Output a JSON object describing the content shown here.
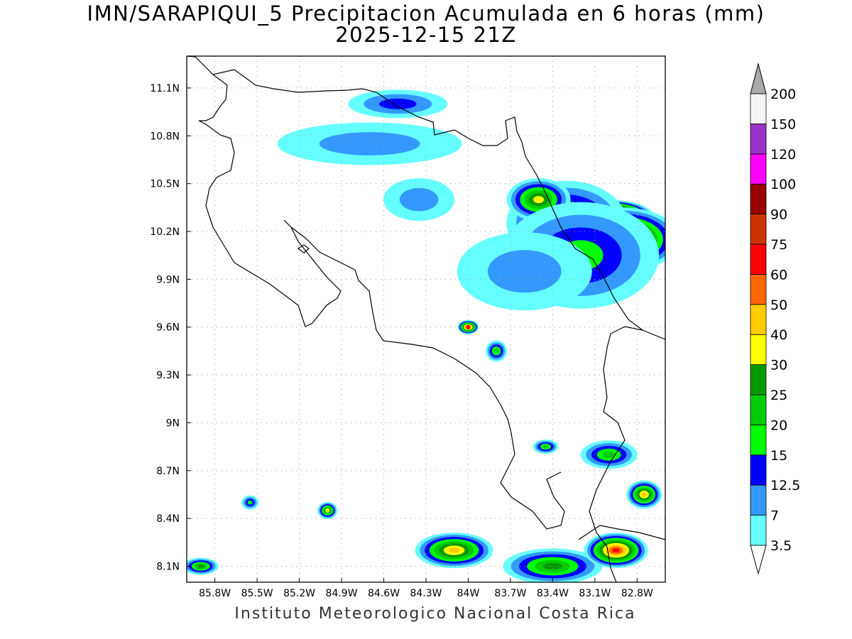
{
  "title": {
    "line1": "IMN/SARAPIQUI_5 Precipitacion Acumulada en 6 horas (mm)",
    "line2": "2025-12-15 21Z"
  },
  "footer": "Instituto Meteorologico Nacional Costa Rica",
  "map": {
    "lon_range": [
      -86.0,
      -82.6
    ],
    "lat_range": [
      8.0,
      11.3
    ],
    "lat_ticks": [
      "11.1N",
      "10.8N",
      "10.5N",
      "10.2N",
      "9.9N",
      "9.6N",
      "9.3N",
      "9N",
      "8.7N",
      "8.4N",
      "8.1N"
    ],
    "lon_ticks": [
      "85.8W",
      "85.5W",
      "85.2W",
      "84.9W",
      "84.6W",
      "84.3W",
      "84W",
      "83.7W",
      "83.4W",
      "83.1W",
      "82.8W"
    ],
    "grid": true
  },
  "colorbar": {
    "labels": [
      "3.5",
      "7",
      "12.5",
      "15",
      "20",
      "25",
      "30",
      "40",
      "50",
      "60",
      "75",
      "90",
      "100",
      "120",
      "150",
      "200"
    ],
    "colors": [
      "#66ffff",
      "#3399ff",
      "#0000ff",
      "#00ff00",
      "#00cc00",
      "#009900",
      "#ffff00",
      "#ffcc00",
      "#ff6600",
      "#ff0000",
      "#cc3300",
      "#990000",
      "#ff00ff",
      "#9933cc",
      "#f5f5f5",
      "#aaaaaa"
    ]
  },
  "precip_cells": [
    {
      "lon": -83.0,
      "lat": 10.3,
      "rx": 62,
      "ry": 22,
      "level": 14
    },
    {
      "lon": -82.9,
      "lat": 10.15,
      "rx": 80,
      "ry": 45,
      "level": 9
    },
    {
      "lon": -83.3,
      "lat": 10.25,
      "rx": 85,
      "ry": 60,
      "level": 5
    },
    {
      "lon": -83.5,
      "lat": 10.4,
      "rx": 45,
      "ry": 30,
      "level": 6
    },
    {
      "lon": -83.2,
      "lat": 10.05,
      "rx": 110,
      "ry": 75,
      "level": 3
    },
    {
      "lon": -83.6,
      "lat": 9.95,
      "rx": 95,
      "ry": 55,
      "level": 1
    },
    {
      "lon": -84.7,
      "lat": 10.75,
      "rx": 130,
      "ry": 30,
      "level": 1
    },
    {
      "lon": -84.5,
      "lat": 11.0,
      "rx": 70,
      "ry": 20,
      "level": 2
    },
    {
      "lon": -84.35,
      "lat": 10.4,
      "rx": 50,
      "ry": 30,
      "level": 1
    },
    {
      "lon": -84.1,
      "lat": 8.2,
      "rx": 55,
      "ry": 25,
      "level": 7
    },
    {
      "lon": -83.4,
      "lat": 8.1,
      "rx": 70,
      "ry": 25,
      "level": 5
    },
    {
      "lon": -82.95,
      "lat": 8.2,
      "rx": 45,
      "ry": 25,
      "level": 9
    },
    {
      "lon": -83.0,
      "lat": 8.8,
      "rx": 40,
      "ry": 20,
      "level": 4
    },
    {
      "lon": -82.75,
      "lat": 8.55,
      "rx": 25,
      "ry": 20,
      "level": 7
    },
    {
      "lon": -84.0,
      "lat": 9.6,
      "rx": 15,
      "ry": 10,
      "level": 9
    },
    {
      "lon": -83.8,
      "lat": 9.45,
      "rx": 15,
      "ry": 15,
      "level": 4
    },
    {
      "lon": -83.45,
      "lat": 8.85,
      "rx": 18,
      "ry": 10,
      "level": 4
    },
    {
      "lon": -85.9,
      "lat": 8.1,
      "rx": 25,
      "ry": 12,
      "level": 5
    },
    {
      "lon": -85.0,
      "lat": 8.45,
      "rx": 14,
      "ry": 12,
      "level": 6
    },
    {
      "lon": -85.55,
      "lat": 8.5,
      "rx": 12,
      "ry": 10,
      "level": 3
    }
  ]
}
